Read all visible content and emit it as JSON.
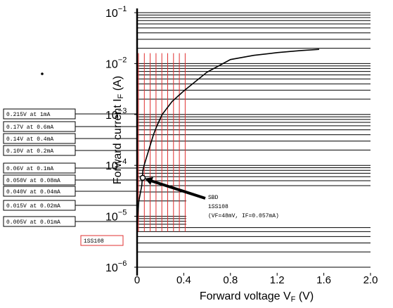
{
  "chart_data": {
    "type": "line",
    "x_label": {
      "text": "Forward voltage  V",
      "sub": "F",
      "unit": " (V)"
    },
    "y_label": {
      "text": "Forward current  I",
      "sub": "F",
      "unit": " (A)"
    },
    "log_y": true,
    "xlim": [
      0,
      2.0
    ],
    "ylim": [
      1e-06,
      0.1
    ],
    "xticks": [
      0,
      0.4,
      0.8,
      1.2,
      1.6,
      {
        "value": 2.0,
        "label": "2.0"
      }
    ],
    "yticks": [
      {
        "value": 0.1,
        "label": "10",
        "exponent": "−1"
      },
      {
        "value": 0.01,
        "label": "10",
        "exponent": "−2"
      },
      {
        "value": 0.001,
        "label": "10",
        "exponent": "−3"
      },
      {
        "value": 0.0001,
        "label": "10",
        "exponent": "−4"
      },
      {
        "value": 1e-05,
        "label": "10",
        "exponent": "−5"
      },
      {
        "value": 1e-06,
        "label": "10",
        "exponent": "−6"
      }
    ],
    "ygrid": [
      1e-06,
      2e-06,
      3e-06,
      4e-06,
      5e-06,
      6e-06,
      7e-06,
      8e-06,
      9e-06,
      1e-05,
      2e-05,
      3e-05,
      4e-05,
      5e-05,
      6e-05,
      7e-05,
      8e-05,
      9e-05,
      0.0001,
      0.0002,
      0.0003,
      0.0004,
      0.0005,
      0.0006,
      0.0007,
      0.0008,
      0.0009,
      0.001,
      0.002,
      0.003,
      0.004,
      0.005,
      0.006,
      0.007,
      0.008,
      0.009,
      0.01,
      0.02,
      0.03,
      0.04,
      0.05,
      0.06,
      0.07,
      0.08,
      0.09,
      0.1
    ],
    "grid_color": "#000000",
    "red_grid_x": [
      0,
      0.05,
      0.1,
      0.15,
      0.2,
      0.25,
      0.3,
      0.35,
      0.4
    ],
    "red_grid_ylim": [
      5e-06,
      0.016
    ],
    "red_grid_color": "#e03030",
    "series": [
      {
        "name": "1SS108",
        "color": "#000000",
        "x": [
          0,
          0.005,
          0.015,
          0.04,
          0.05,
          0.06,
          0.1,
          0.14,
          0.17,
          0.215,
          0.3,
          0.4,
          0.6,
          0.8,
          1.0,
          1.2,
          1.4,
          1.56
        ],
        "values": [
          6e-06,
          1e-05,
          2e-05,
          4e-05,
          8e-05,
          0.0001,
          0.0002,
          0.0004,
          0.0006,
          0.001,
          0.0018,
          0.0029,
          0.0068,
          0.012,
          0.0145,
          0.0164,
          0.018,
          0.019
        ]
      }
    ],
    "marker": {
      "x": 0.048,
      "y": 5.7e-05
    },
    "annotation": [
      "SBD",
      "1SS108",
      "(VF=48mV, IF=0.057mA)"
    ],
    "callouts": [
      "0.215V at 1mA",
      "0.17V at 0.6mA",
      "0.14V at 0.4mA",
      "0.10V at 0.2mA",
      "0.06V at 0.1mA",
      "0.050V at 0.08mA",
      "0.040V at 0.04mA",
      "0.015V at 0.02mA",
      "0.005V at 0.01mA"
    ],
    "part_label": "1SS108"
  }
}
